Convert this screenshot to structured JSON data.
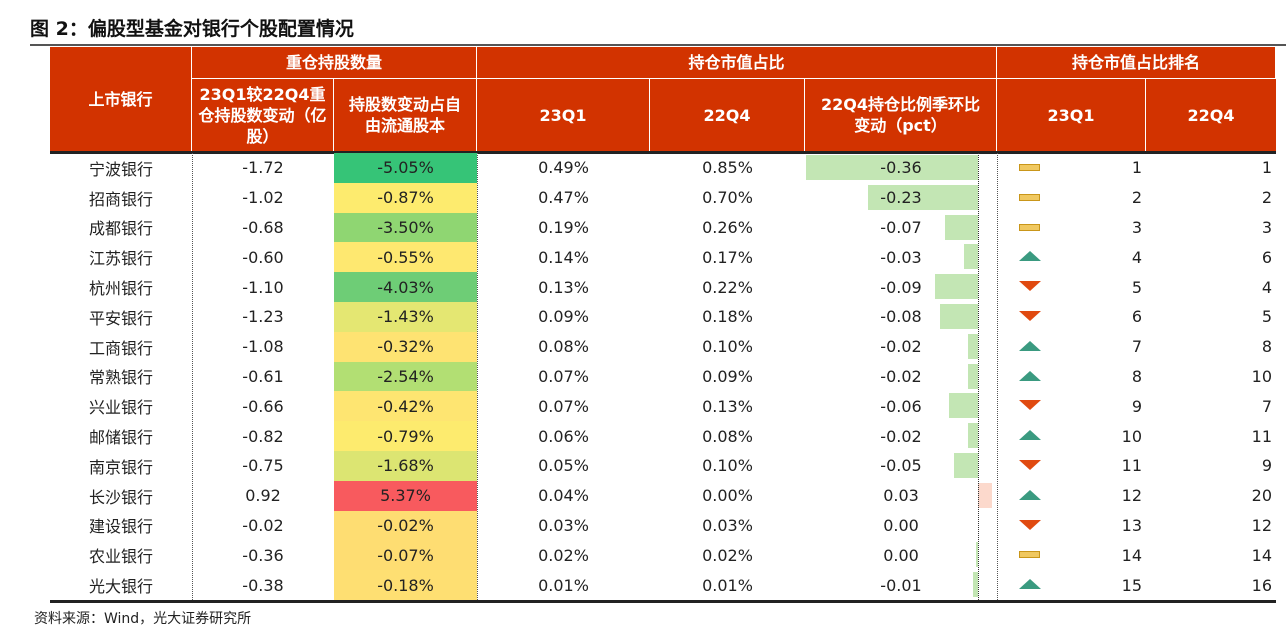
{
  "title": "图 2：偏股型基金对银行个股配置情况",
  "source": "资料来源：Wind，光大证券研究所",
  "header": {
    "bank": "上市银行",
    "group_holdings": "重仓持股数量",
    "group_mv": "持仓市值占比",
    "group_rank": "持仓市值占比排名",
    "chg_shares": "23Q1较22Q4重仓持股数变动（亿股）",
    "chg_ratio": "持股数变动占自由流通股本",
    "mv_23q1": "23Q1",
    "mv_22q4": "22Q4",
    "mv_chg": "22Q4持仓比例季环比变动（pct）",
    "rank_23q1": "23Q1",
    "rank_22q4": "22Q4"
  },
  "colors": {
    "header": "#d23300",
    "bar_negative": "#c3e6b4",
    "bar_positive": "#fcd9cc",
    "up": "#3a9a80",
    "down": "#e04a10",
    "flat": "#f0c860"
  },
  "rows": [
    {
      "bank": "宁波银行",
      "chg": "-1.72",
      "ratio": "-5.05%",
      "ratio_bg": "#36c477",
      "mv1": "0.49%",
      "mv0": "0.85%",
      "d": "-0.36",
      "dv": -0.36,
      "trend": "flat",
      "r1": "1",
      "r0": "1"
    },
    {
      "bank": "招商银行",
      "chg": "-1.02",
      "ratio": "-0.87%",
      "ratio_bg": "#fdeb6e",
      "mv1": "0.47%",
      "mv0": "0.70%",
      "d": "-0.23",
      "dv": -0.23,
      "trend": "flat",
      "r1": "2",
      "r0": "2"
    },
    {
      "bank": "成都银行",
      "chg": "-0.68",
      "ratio": "-3.50%",
      "ratio_bg": "#8fd672",
      "mv1": "0.19%",
      "mv0": "0.26%",
      "d": "-0.07",
      "dv": -0.07,
      "trend": "flat",
      "r1": "3",
      "r0": "3"
    },
    {
      "bank": "江苏银行",
      "chg": "-0.60",
      "ratio": "-0.55%",
      "ratio_bg": "#fee870",
      "mv1": "0.14%",
      "mv0": "0.17%",
      "d": "-0.03",
      "dv": -0.03,
      "trend": "up",
      "r1": "4",
      "r0": "6"
    },
    {
      "bank": "杭州银行",
      "chg": "-1.10",
      "ratio": "-4.03%",
      "ratio_bg": "#6ecd76",
      "mv1": "0.13%",
      "mv0": "0.22%",
      "d": "-0.09",
      "dv": -0.09,
      "trend": "down",
      "r1": "5",
      "r0": "4"
    },
    {
      "bank": "平安银行",
      "chg": "-1.23",
      "ratio": "-1.43%",
      "ratio_bg": "#e4e772",
      "mv1": "0.09%",
      "mv0": "0.18%",
      "d": "-0.08",
      "dv": -0.08,
      "trend": "down",
      "r1": "6",
      "r0": "5"
    },
    {
      "bank": "工商银行",
      "chg": "-1.08",
      "ratio": "-0.32%",
      "ratio_bg": "#fee372",
      "mv1": "0.08%",
      "mv0": "0.10%",
      "d": "-0.02",
      "dv": -0.02,
      "trend": "up",
      "r1": "7",
      "r0": "8"
    },
    {
      "bank": "常熟银行",
      "chg": "-0.61",
      "ratio": "-2.54%",
      "ratio_bg": "#b2df73",
      "mv1": "0.07%",
      "mv0": "0.09%",
      "d": "-0.02",
      "dv": -0.02,
      "trend": "up",
      "r1": "8",
      "r0": "10"
    },
    {
      "bank": "兴业银行",
      "chg": "-0.66",
      "ratio": "-0.42%",
      "ratio_bg": "#fee571",
      "mv1": "0.07%",
      "mv0": "0.13%",
      "d": "-0.06",
      "dv": -0.06,
      "trend": "down",
      "r1": "9",
      "r0": "7"
    },
    {
      "bank": "邮储银行",
      "chg": "-0.82",
      "ratio": "-0.79%",
      "ratio_bg": "#fdeb6e",
      "mv1": "0.06%",
      "mv0": "0.08%",
      "d": "-0.02",
      "dv": -0.02,
      "trend": "up",
      "r1": "10",
      "r0": "11"
    },
    {
      "bank": "南京银行",
      "chg": "-0.75",
      "ratio": "-1.68%",
      "ratio_bg": "#dce572",
      "mv1": "0.05%",
      "mv0": "0.10%",
      "d": "-0.05",
      "dv": -0.05,
      "trend": "down",
      "r1": "11",
      "r0": "9"
    },
    {
      "bank": "长沙银行",
      "chg": "0.92",
      "ratio": "5.37%",
      "ratio_bg": "#f85a5e",
      "mv1": "0.04%",
      "mv0": "0.00%",
      "d": "0.03",
      "dv": 0.03,
      "trend": "up",
      "r1": "12",
      "r0": "20"
    },
    {
      "bank": "建设银行",
      "chg": "-0.02",
      "ratio": "-0.02%",
      "ratio_bg": "#fedd72",
      "mv1": "0.03%",
      "mv0": "0.03%",
      "d": "0.00",
      "dv": 0.0,
      "trend": "down",
      "r1": "13",
      "r0": "12"
    },
    {
      "bank": "农业银行",
      "chg": "-0.36",
      "ratio": "-0.07%",
      "ratio_bg": "#fedd72",
      "mv1": "0.02%",
      "mv0": "0.02%",
      "d": "0.00",
      "dv": -0.004,
      "trend": "flat",
      "r1": "14",
      "r0": "14"
    },
    {
      "bank": "光大银行",
      "chg": "-0.38",
      "ratio": "-0.18%",
      "ratio_bg": "#fedf72",
      "mv1": "0.01%",
      "mv0": "0.01%",
      "d": "-0.01",
      "dv": -0.01,
      "trend": "up",
      "r1": "15",
      "r0": "16"
    }
  ]
}
